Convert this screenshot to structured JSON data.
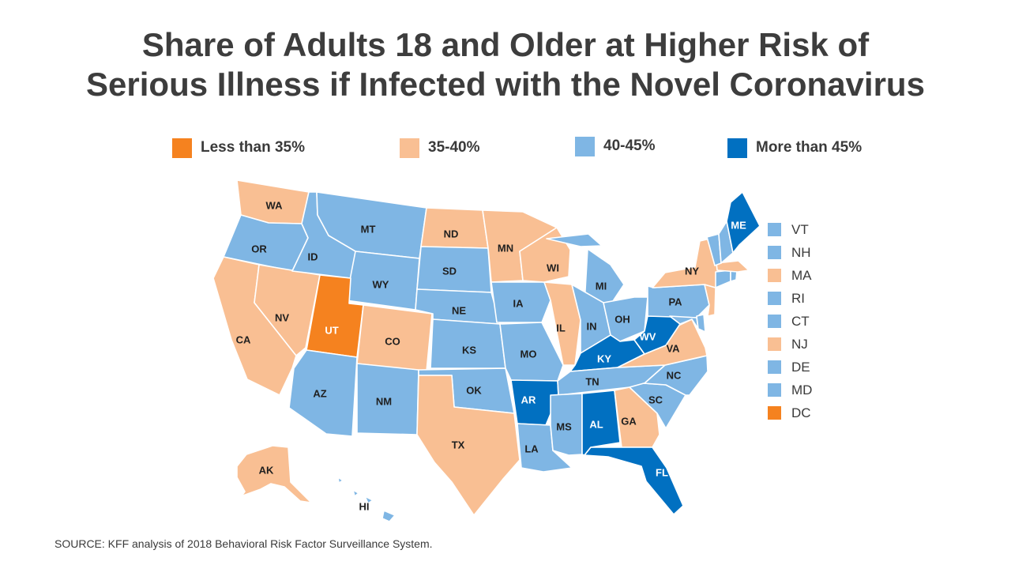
{
  "title": {
    "line1": "Share of Adults 18 and Older at Higher Risk of",
    "line2": "Serious Illness if Infected with the Novel Coronavirus"
  },
  "legend": [
    {
      "label": "Less than 35%",
      "color": "#f5821f"
    },
    {
      "label": "35-40%",
      "color": "#f9bf93"
    },
    {
      "label": "40-45%",
      "color": "#7fb6e4"
    },
    {
      "label": "More than 45%",
      "color": "#0170c1"
    }
  ],
  "states": [
    {
      "abbr": "WA",
      "category": "35-40%"
    },
    {
      "abbr": "OR",
      "category": "40-45%"
    },
    {
      "abbr": "CA",
      "category": "35-40%"
    },
    {
      "abbr": "NV",
      "category": "35-40%"
    },
    {
      "abbr": "ID",
      "category": "40-45%"
    },
    {
      "abbr": "MT",
      "category": "40-45%"
    },
    {
      "abbr": "WY",
      "category": "40-45%"
    },
    {
      "abbr": "UT",
      "category": "Less than 35%"
    },
    {
      "abbr": "CO",
      "category": "35-40%"
    },
    {
      "abbr": "AZ",
      "category": "40-45%"
    },
    {
      "abbr": "NM",
      "category": "40-45%"
    },
    {
      "abbr": "ND",
      "category": "35-40%"
    },
    {
      "abbr": "SD",
      "category": "40-45%"
    },
    {
      "abbr": "NE",
      "category": "40-45%"
    },
    {
      "abbr": "KS",
      "category": "40-45%"
    },
    {
      "abbr": "OK",
      "category": "40-45%"
    },
    {
      "abbr": "TX",
      "category": "35-40%"
    },
    {
      "abbr": "MN",
      "category": "35-40%"
    },
    {
      "abbr": "IA",
      "category": "40-45%"
    },
    {
      "abbr": "MO",
      "category": "40-45%"
    },
    {
      "abbr": "AR",
      "category": "More than 45%"
    },
    {
      "abbr": "LA",
      "category": "40-45%"
    },
    {
      "abbr": "WI",
      "category": "35-40%"
    },
    {
      "abbr": "IL",
      "category": "35-40%"
    },
    {
      "abbr": "MI",
      "category": "40-45%"
    },
    {
      "abbr": "IN",
      "category": "40-45%"
    },
    {
      "abbr": "OH",
      "category": "40-45%"
    },
    {
      "abbr": "KY",
      "category": "More than 45%"
    },
    {
      "abbr": "TN",
      "category": "40-45%"
    },
    {
      "abbr": "MS",
      "category": "40-45%"
    },
    {
      "abbr": "AL",
      "category": "More than 45%"
    },
    {
      "abbr": "GA",
      "category": "35-40%"
    },
    {
      "abbr": "FL",
      "category": "More than 45%"
    },
    {
      "abbr": "SC",
      "category": "40-45%"
    },
    {
      "abbr": "NC",
      "category": "40-45%"
    },
    {
      "abbr": "VA",
      "category": "35-40%"
    },
    {
      "abbr": "WV",
      "category": "More than 45%"
    },
    {
      "abbr": "PA",
      "category": "40-45%"
    },
    {
      "abbr": "NY",
      "category": "35-40%"
    },
    {
      "abbr": "ME",
      "category": "More than 45%"
    },
    {
      "abbr": "AK",
      "category": "35-40%"
    },
    {
      "abbr": "HI",
      "category": "40-45%"
    }
  ],
  "small_states": [
    {
      "abbr": "VT",
      "category": "40-45%"
    },
    {
      "abbr": "NH",
      "category": "40-45%"
    },
    {
      "abbr": "MA",
      "category": "35-40%"
    },
    {
      "abbr": "RI",
      "category": "40-45%"
    },
    {
      "abbr": "CT",
      "category": "40-45%"
    },
    {
      "abbr": "NJ",
      "category": "35-40%"
    },
    {
      "abbr": "DE",
      "category": "40-45%"
    },
    {
      "abbr": "MD",
      "category": "40-45%"
    },
    {
      "abbr": "DC",
      "category": "Less than 35%"
    }
  ],
  "source": "SOURCE: KFF analysis of 2018 Behavioral Risk Factor Surveillance System."
}
